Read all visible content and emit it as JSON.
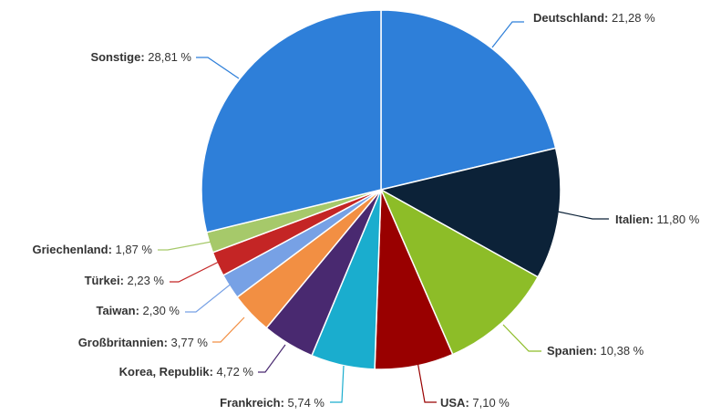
{
  "chart_data": {
    "type": "pie",
    "title": "",
    "unit": "%",
    "slices": [
      {
        "label": "Deutschland",
        "value": 21.28,
        "value_text": "21,28 %",
        "color": "#2e7fd9"
      },
      {
        "label": "Italien",
        "value": 11.8,
        "value_text": "11,80 %",
        "color": "#0c2238"
      },
      {
        "label": "Spanien",
        "value": 10.38,
        "value_text": "10,38 %",
        "color": "#8dbd28"
      },
      {
        "label": "USA",
        "value": 7.1,
        "value_text": "7,10 %",
        "color": "#990000"
      },
      {
        "label": "Frankreich",
        "value": 5.74,
        "value_text": "5,74 %",
        "color": "#1aadce"
      },
      {
        "label": "Korea, Republik",
        "value": 4.72,
        "value_text": "4,72 %",
        "color": "#492970"
      },
      {
        "label": "Großbritannien",
        "value": 3.77,
        "value_text": "3,77 %",
        "color": "#f28f43"
      },
      {
        "label": "Taiwan",
        "value": 2.3,
        "value_text": "2,30 %",
        "color": "#77a1e5"
      },
      {
        "label": "Türkei",
        "value": 2.23,
        "value_text": "2,23 %",
        "color": "#c42525"
      },
      {
        "label": "Griechenland",
        "value": 1.87,
        "value_text": "1,87 %",
        "color": "#a6c96a"
      },
      {
        "label": "Sonstige",
        "value": 28.81,
        "value_text": "28,81 %",
        "color": "#2e7fd9"
      }
    ]
  }
}
